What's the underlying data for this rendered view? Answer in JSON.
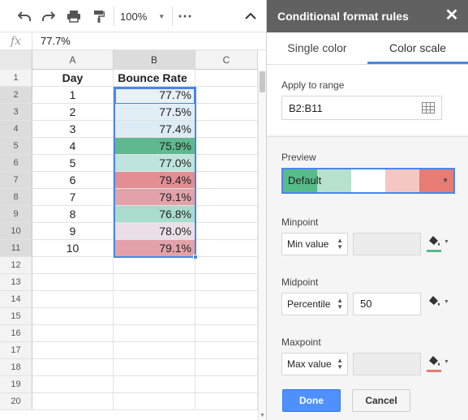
{
  "toolbar": {
    "zoom": "100%",
    "icons": [
      "undo-icon",
      "redo-icon",
      "print-icon",
      "paint-format-icon",
      "more-icon",
      "collapse-icon"
    ]
  },
  "formula_bar": {
    "fx": "fx",
    "value": "77.7%"
  },
  "grid": {
    "columns": [
      "A",
      "B",
      "C"
    ],
    "rows": [
      {
        "n": "1",
        "a": "Day",
        "b": "Bounce Rate",
        "header": true
      },
      {
        "n": "2",
        "a": "1",
        "b": "77.7%",
        "color": "#e8f0f8"
      },
      {
        "n": "3",
        "a": "2",
        "b": "77.5%",
        "color": "#e2eef6"
      },
      {
        "n": "4",
        "a": "3",
        "b": "77.4%",
        "color": "#ddecf4"
      },
      {
        "n": "5",
        "a": "4",
        "b": "75.9%",
        "color": "#5fb88f"
      },
      {
        "n": "6",
        "a": "5",
        "b": "77.0%",
        "color": "#bfe3dd"
      },
      {
        "n": "7",
        "a": "6",
        "b": "79.4%",
        "color": "#e28e93"
      },
      {
        "n": "8",
        "a": "7",
        "b": "79.1%",
        "color": "#e3a2aa"
      },
      {
        "n": "9",
        "a": "8",
        "b": "76.8%",
        "color": "#a9dccd"
      },
      {
        "n": "10",
        "a": "9",
        "b": "78.0%",
        "color": "#eadfe8"
      },
      {
        "n": "11",
        "a": "10",
        "b": "79.1%",
        "color": "#e3a2aa"
      },
      {
        "n": "12",
        "a": "",
        "b": ""
      },
      {
        "n": "13",
        "a": "",
        "b": ""
      },
      {
        "n": "14",
        "a": "",
        "b": ""
      },
      {
        "n": "15",
        "a": "",
        "b": ""
      },
      {
        "n": "16",
        "a": "",
        "b": ""
      },
      {
        "n": "17",
        "a": "",
        "b": ""
      },
      {
        "n": "18",
        "a": "",
        "b": ""
      },
      {
        "n": "19",
        "a": "",
        "b": ""
      },
      {
        "n": "20",
        "a": "",
        "b": ""
      }
    ]
  },
  "panel": {
    "title": "Conditional format rules",
    "tabs": [
      "Single color",
      "Color scale"
    ],
    "active_tab": "Color scale",
    "apply_label": "Apply to range",
    "range": "B2:B11",
    "preview_label": "Preview",
    "preview_text": "Default",
    "preview_colors": [
      "#57bb8a",
      "#b7e1cd",
      "#ffffff",
      "#f4c7c3",
      "#e67c73"
    ],
    "minpoint": {
      "label": "Minpoint",
      "type": "Min value",
      "value": "",
      "color": "#57bb8a"
    },
    "midpoint": {
      "label": "Midpoint",
      "type": "Percentile",
      "value": "50"
    },
    "maxpoint": {
      "label": "Maxpoint",
      "type": "Max value",
      "value": "",
      "color": "#e67c73"
    },
    "done_label": "Done",
    "cancel_label": "Cancel"
  }
}
